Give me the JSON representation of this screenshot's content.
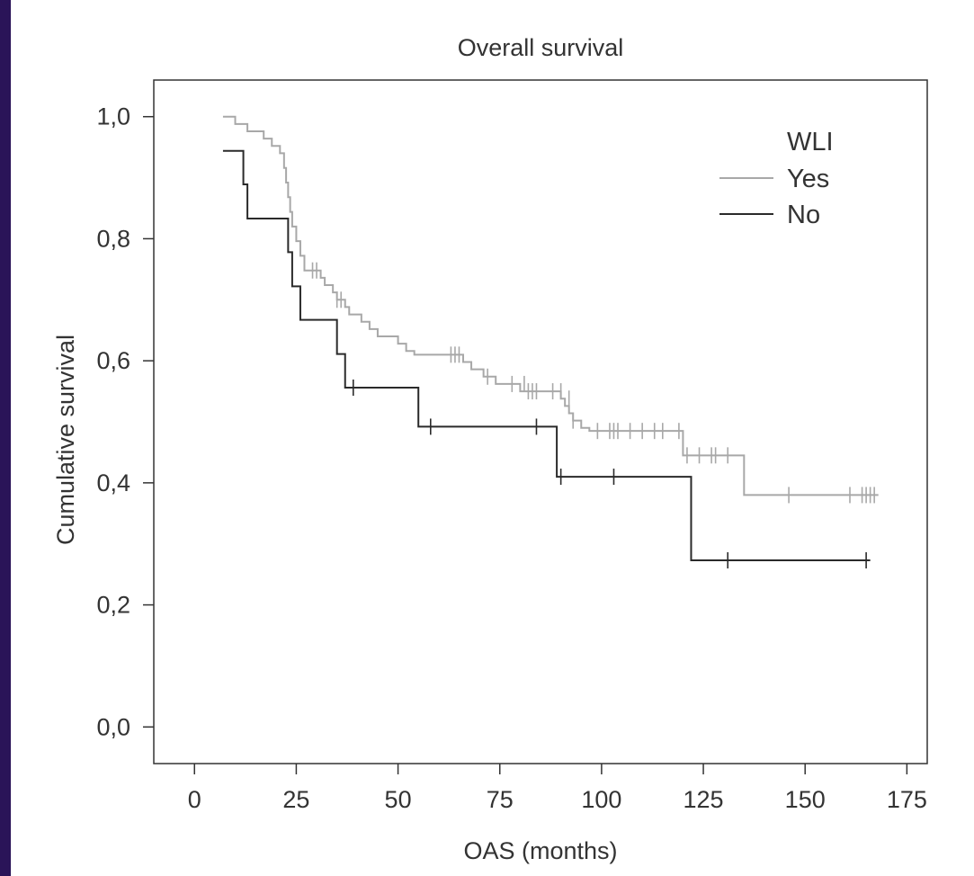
{
  "chart_data": {
    "type": "line",
    "title": "Overall survival",
    "xlabel": "OAS (months)",
    "ylabel": "Cumulative survival",
    "xlim": [
      -10,
      180
    ],
    "ylim": [
      -0.06,
      1.06
    ],
    "xticks": [
      0,
      25,
      50,
      75,
      100,
      125,
      150,
      175
    ],
    "xtick_labels": [
      "0",
      "25",
      "50",
      "75",
      "100",
      "125",
      "150",
      "175"
    ],
    "yticks": [
      0.0,
      0.2,
      0.4,
      0.6,
      0.8,
      1.0
    ],
    "ytick_labels": [
      "0,0",
      "0,2",
      "0,4",
      "0,6",
      "0,8",
      "1,0"
    ],
    "grid": false,
    "legend": {
      "title": "WLI",
      "placement": "top-right",
      "entries": [
        "Yes",
        "No"
      ]
    },
    "series": [
      {
        "name": "Yes",
        "color": "#a8a8a8",
        "steps": [
          [
            7,
            1.0
          ],
          [
            10,
            0.988
          ],
          [
            13,
            0.976
          ],
          [
            17,
            0.964
          ],
          [
            19,
            0.952
          ],
          [
            21,
            0.94
          ],
          [
            22,
            0.916
          ],
          [
            22.5,
            0.892
          ],
          [
            23,
            0.868
          ],
          [
            23.5,
            0.844
          ],
          [
            24,
            0.82
          ],
          [
            25,
            0.796
          ],
          [
            26,
            0.772
          ],
          [
            27,
            0.748
          ],
          [
            31,
            0.736
          ],
          [
            32,
            0.724
          ],
          [
            34,
            0.712
          ],
          [
            35,
            0.7
          ],
          [
            37,
            0.688
          ],
          [
            38,
            0.676
          ],
          [
            41,
            0.664
          ],
          [
            43,
            0.652
          ],
          [
            45,
            0.64
          ],
          [
            50,
            0.628
          ],
          [
            52,
            0.616
          ],
          [
            54,
            0.61
          ],
          [
            66,
            0.598
          ],
          [
            68,
            0.586
          ],
          [
            71,
            0.574
          ],
          [
            74,
            0.562
          ],
          [
            80,
            0.55
          ],
          [
            90,
            0.538
          ],
          [
            91,
            0.526
          ],
          [
            92,
            0.514
          ],
          [
            93,
            0.502
          ],
          [
            95,
            0.49
          ],
          [
            97,
            0.485
          ],
          [
            120,
            0.445
          ],
          [
            135,
            0.38
          ],
          [
            168,
            0.38
          ]
        ],
        "censored": [
          [
            29,
            0.748
          ],
          [
            30,
            0.748
          ],
          [
            35,
            0.7
          ],
          [
            36,
            0.7
          ],
          [
            63,
            0.61
          ],
          [
            64,
            0.61
          ],
          [
            65,
            0.61
          ],
          [
            72,
            0.574
          ],
          [
            78,
            0.562
          ],
          [
            81,
            0.562
          ],
          [
            82,
            0.55
          ],
          [
            83,
            0.55
          ],
          [
            84,
            0.55
          ],
          [
            88,
            0.55
          ],
          [
            90,
            0.55
          ],
          [
            92,
            0.538
          ],
          [
            93,
            0.502
          ],
          [
            99,
            0.485
          ],
          [
            102,
            0.485
          ],
          [
            103,
            0.485
          ],
          [
            104,
            0.485
          ],
          [
            107,
            0.485
          ],
          [
            110,
            0.485
          ],
          [
            113,
            0.485
          ],
          [
            115,
            0.485
          ],
          [
            119,
            0.485
          ],
          [
            121,
            0.445
          ],
          [
            124,
            0.445
          ],
          [
            127,
            0.445
          ],
          [
            128,
            0.445
          ],
          [
            131,
            0.445
          ],
          [
            146,
            0.38
          ],
          [
            161,
            0.38
          ],
          [
            164,
            0.38
          ],
          [
            165,
            0.38
          ],
          [
            166,
            0.38
          ],
          [
            167,
            0.38
          ]
        ]
      },
      {
        "name": "No",
        "color": "#2a2a2a",
        "steps": [
          [
            7,
            0.944
          ],
          [
            12,
            0.889
          ],
          [
            13,
            0.833
          ],
          [
            23,
            0.778
          ],
          [
            24,
            0.722
          ],
          [
            26,
            0.667
          ],
          [
            35,
            0.611
          ],
          [
            37,
            0.556
          ],
          [
            55,
            0.492
          ],
          [
            89,
            0.41
          ],
          [
            122,
            0.273
          ],
          [
            166,
            0.273
          ]
        ],
        "censored": [
          [
            39,
            0.556
          ],
          [
            58,
            0.492
          ],
          [
            84,
            0.492
          ],
          [
            90,
            0.41
          ],
          [
            103,
            0.41
          ],
          [
            131,
            0.273
          ],
          [
            165,
            0.273
          ]
        ]
      }
    ]
  }
}
